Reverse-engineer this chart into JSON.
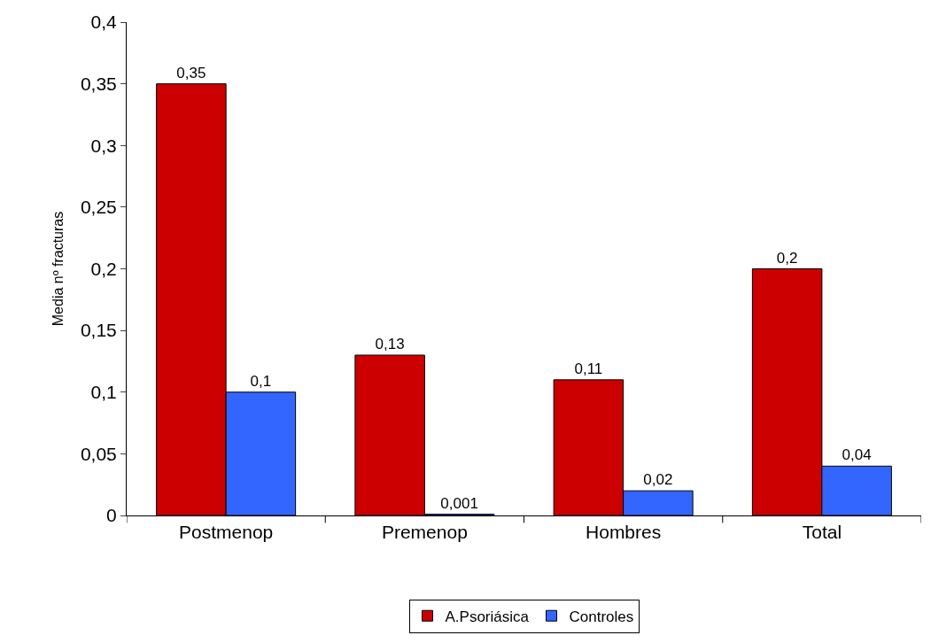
{
  "chart_data": {
    "type": "bar",
    "ylabel": "Media nº fracturas",
    "categories": [
      "Postmenop",
      "Premenop",
      "Hombres",
      "Total"
    ],
    "series": [
      {
        "name": "A.Psoriásica",
        "color": "#cc0000",
        "values": [
          0.35,
          0.13,
          0.11,
          0.2
        ],
        "value_labels": [
          "0,35",
          "0,13",
          "0,11",
          "0,2"
        ]
      },
      {
        "name": "Controles",
        "color": "#3366ff",
        "values": [
          0.1,
          0.001,
          0.02,
          0.04
        ],
        "value_labels": [
          "0,1",
          "0,001",
          "0,02",
          "0,04"
        ]
      }
    ],
    "ylim": [
      0,
      0.4
    ],
    "yticks": [
      0,
      {
        "value": 0.05,
        "label": "0,05"
      },
      {
        "value": 0.1,
        "label": "0,1"
      },
      {
        "value": 0.15,
        "label": "0,15"
      },
      {
        "value": 0.2,
        "label": "0,2"
      },
      {
        "value": 0.25,
        "label": "0,25"
      },
      {
        "value": 0.3,
        "label": "0,3"
      },
      {
        "value": 0.35,
        "label": "0,35"
      },
      {
        "value": 0.4,
        "label": "0,4"
      }
    ],
    "grid": false,
    "legend": "bottom"
  }
}
